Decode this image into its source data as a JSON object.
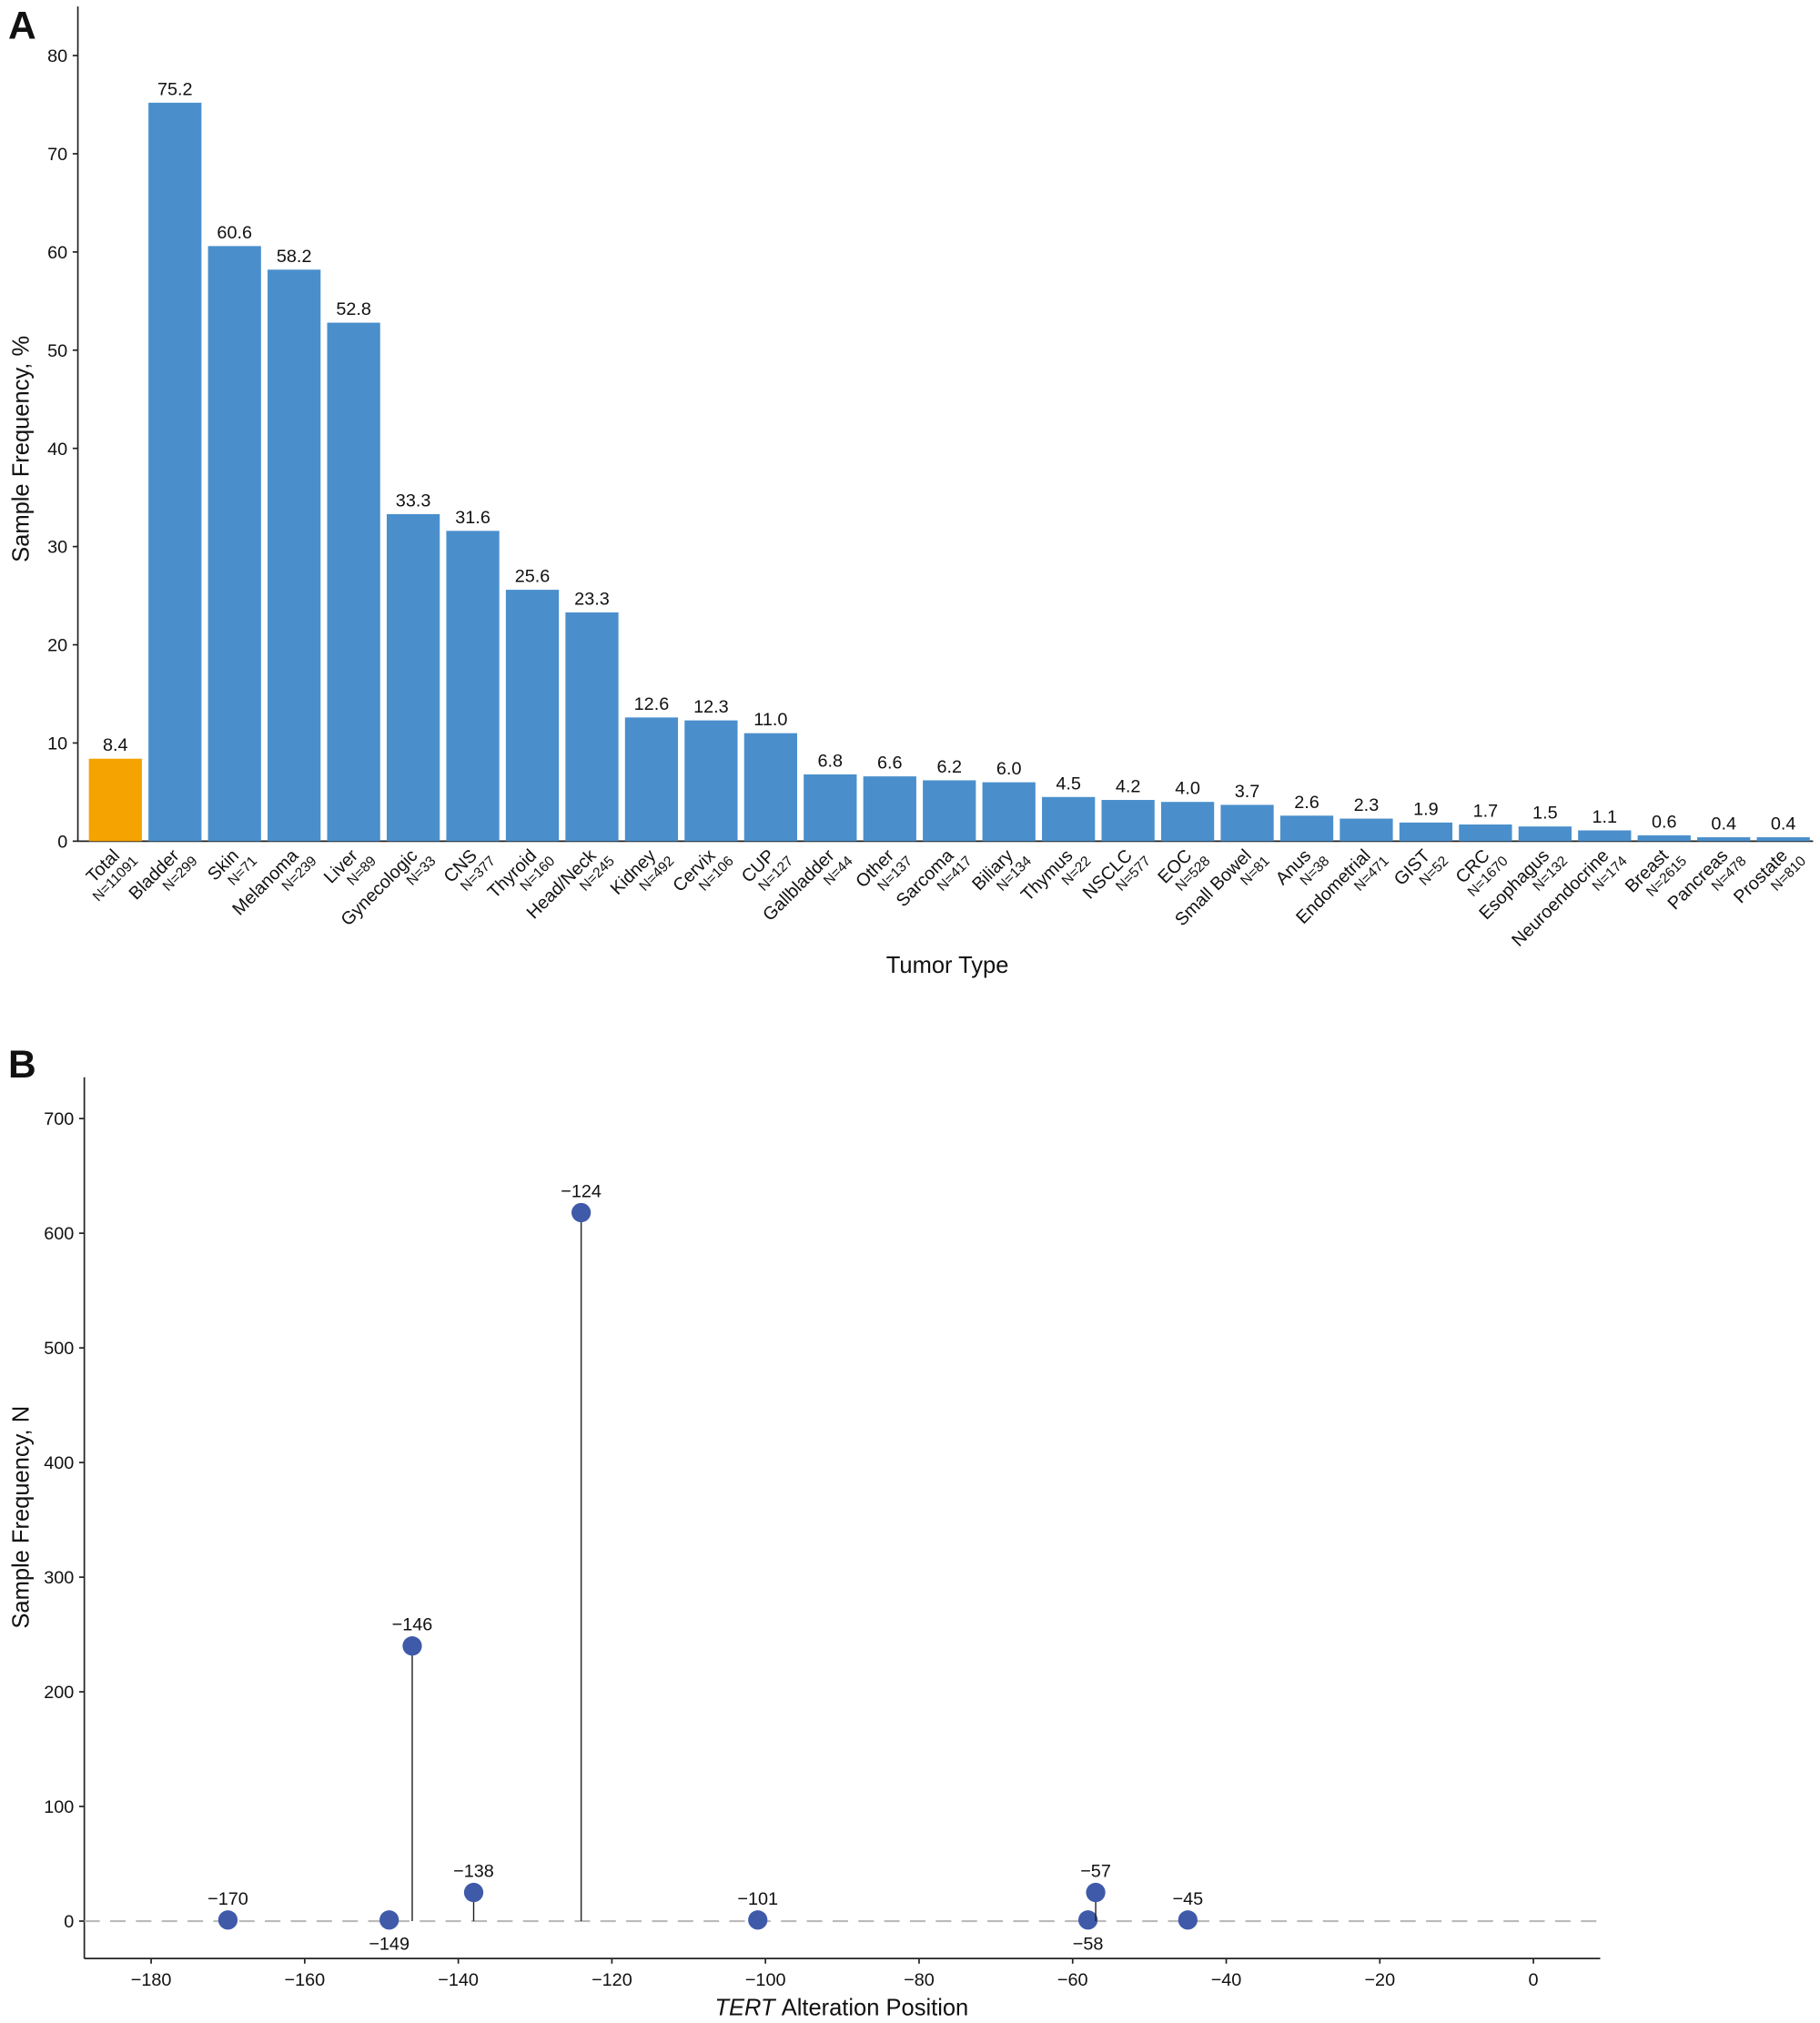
{
  "chart_data": [
    {
      "type": "bar",
      "panel_label": "A",
      "ylabel": "Sample Frequency, %",
      "xlabel": "Tumor Type",
      "categories": [
        "Total",
        "Bladder",
        "Skin",
        "Melanoma",
        "Liver",
        "Gynecologic",
        "CNS",
        "Thyroid",
        "Head/Neck",
        "Kidney",
        "Cervix",
        "CUP",
        "Gallbladder",
        "Other",
        "Sarcoma",
        "Biliary",
        "Thymus",
        "NSCLC",
        "EOC",
        "Small Bowel",
        "Anus",
        "Endometrial",
        "GIST",
        "CRC",
        "Esophagus",
        "Neuroendocrine",
        "Breast",
        "Pancreas",
        "Prostate"
      ],
      "n_labels": [
        "N=11091",
        "N=299",
        "N=71",
        "N=239",
        "N=89",
        "N=33",
        "N=377",
        "N=160",
        "N=245",
        "N=492",
        "N=106",
        "N=127",
        "N=44",
        "N=137",
        "N=417",
        "N=134",
        "N=22",
        "N=577",
        "N=528",
        "N=81",
        "N=38",
        "N=471",
        "N=52",
        "N=1670",
        "N=132",
        "N=174",
        "N=2615",
        "N=478",
        "N=810"
      ],
      "values": [
        8.4,
        75.2,
        60.6,
        58.2,
        52.8,
        33.3,
        31.6,
        25.6,
        23.3,
        12.6,
        12.3,
        11.0,
        6.8,
        6.6,
        6.2,
        6.0,
        4.5,
        4.2,
        4.0,
        3.7,
        2.6,
        2.3,
        1.9,
        1.7,
        1.5,
        1.1,
        0.6,
        0.4,
        0.4
      ],
      "value_labels": [
        "8.4",
        "75.2",
        "60.6",
        "58.2",
        "52.8",
        "33.3",
        "31.6",
        "25.6",
        "23.3",
        "12.6",
        "12.3",
        "11.0",
        "6.8",
        "6.6",
        "6.2",
        "6.0",
        "4.5",
        "4.2",
        "4.0",
        "3.7",
        "2.6",
        "2.3",
        "1.9",
        "1.7",
        "1.5",
        "1.1",
        "0.6",
        "0.4",
        "0.4"
      ],
      "colors": [
        "#f5a300",
        "#4a8fcc",
        "#4a8fcc",
        "#4a8fcc",
        "#4a8fcc",
        "#4a8fcc",
        "#4a8fcc",
        "#4a8fcc",
        "#4a8fcc",
        "#4a8fcc",
        "#4a8fcc",
        "#4a8fcc",
        "#4a8fcc",
        "#4a8fcc",
        "#4a8fcc",
        "#4a8fcc",
        "#4a8fcc",
        "#4a8fcc",
        "#4a8fcc",
        "#4a8fcc",
        "#4a8fcc",
        "#4a8fcc",
        "#4a8fcc",
        "#4a8fcc",
        "#4a8fcc",
        "#4a8fcc",
        "#4a8fcc",
        "#4a8fcc",
        "#4a8fcc"
      ],
      "ylim": [
        0,
        85
      ],
      "yticks": [
        0,
        10,
        20,
        30,
        40,
        50,
        60,
        70,
        80
      ]
    },
    {
      "type": "lollipop",
      "panel_label": "B",
      "ylabel": "Sample Frequency, N",
      "xlabel": [
        "TERT",
        "Alteration Position"
      ],
      "x": [
        -170,
        -149,
        -146,
        -138,
        -124,
        -101,
        -58,
        -57,
        -45
      ],
      "values": [
        1,
        1,
        240,
        25,
        618,
        1,
        1,
        25,
        1
      ],
      "value_labels": [
        "−170",
        "−149",
        "−146",
        "−138",
        "−124",
        "−101",
        "−58",
        "−57",
        "−45"
      ],
      "color": "#3f5aa8",
      "xlim": [
        -188.7,
        8.7
      ],
      "xticks": [
        {
          "value": -180,
          "label": "−180"
        },
        {
          "value": -160,
          "label": "−160"
        },
        {
          "value": -140,
          "label": "−140"
        },
        {
          "value": -120,
          "label": "−120"
        },
        {
          "value": -100,
          "label": "−100"
        },
        {
          "value": -80,
          "label": "−80"
        },
        {
          "value": -60,
          "label": "−60"
        },
        {
          "value": -40,
          "label": "−40"
        },
        {
          "value": -20,
          "label": "−20"
        },
        0
      ],
      "ylim": [
        -32.6,
        736
      ],
      "yticks": [
        0,
        100,
        200,
        300,
        400,
        500,
        600,
        700
      ]
    }
  ]
}
